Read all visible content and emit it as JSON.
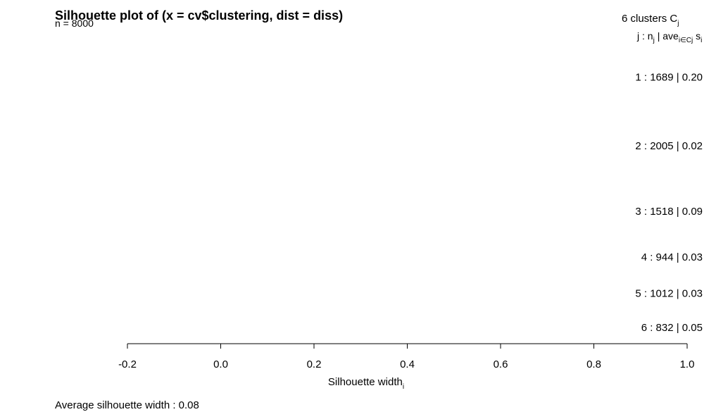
{
  "chart_data": {
    "type": "bar",
    "title": "Silhouette plot of (x = cv$clustering, dist = diss)",
    "subtitle": "n = 8000",
    "n": 8000,
    "xlabel": "Silhouette width",
    "xlabel_sub": "i",
    "xlim": [
      -0.2,
      1.0
    ],
    "xticks": [
      -0.2,
      0.0,
      0.2,
      0.4,
      0.6,
      0.8,
      1.0
    ],
    "xtick_labels": [
      "-0.2",
      "0.0",
      "0.2",
      "0.4",
      "0.6",
      "0.8",
      "1.0"
    ],
    "header_clusters": "6  clusters  C",
    "header_clusters_sub": "j",
    "header_cols_j": "j :  n",
    "header_cols_j_sub": "j",
    "header_cols_ave": " | ave",
    "header_cols_ave_sub": "i∈Cj",
    "header_cols_s": "  s",
    "header_cols_s_sub": "i",
    "clusters": [
      {
        "j": 1,
        "n": 1689,
        "avg": 0.2,
        "label": "1 :   1689  |  0.20"
      },
      {
        "j": 2,
        "n": 2005,
        "avg": 0.02,
        "label": "2 :   2005  |  0.02"
      },
      {
        "j": 3,
        "n": 1518,
        "avg": 0.09,
        "label": "3 :   1518  |  0.09"
      },
      {
        "j": 4,
        "n": 944,
        "avg": 0.03,
        "label": "4 :   944  |  0.03"
      },
      {
        "j": 5,
        "n": 1012,
        "avg": 0.03,
        "label": "5 :   1012  |  0.03"
      },
      {
        "j": 6,
        "n": 832,
        "avg": 0.05,
        "label": "6 :   832  |  0.05"
      }
    ],
    "footer_label": "Average silhouette width :  0.08",
    "average_silhouette_width": 0.08,
    "grid": false,
    "legend": "none"
  }
}
